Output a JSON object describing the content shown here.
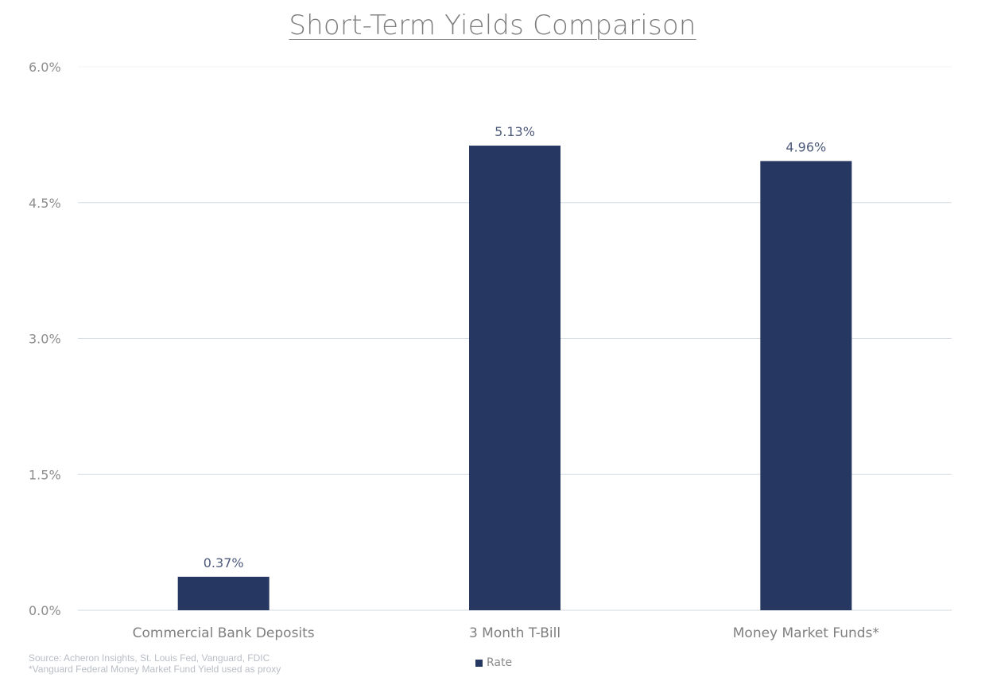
{
  "chart_data": {
    "type": "bar",
    "title": "Short-Term Yields Comparison",
    "categories": [
      "Commercial Bank Deposits",
      "3 Month T-Bill",
      "Money Market Funds*"
    ],
    "series": [
      {
        "name": "Rate",
        "values": [
          0.37,
          5.13,
          4.96
        ]
      }
    ],
    "data_labels": [
      "0.37%",
      "5.13%",
      "4.96%"
    ],
    "yticks": [
      "0.0%",
      "1.5%",
      "3.0%",
      "4.5%",
      "6.0%"
    ],
    "ytick_values": [
      0,
      1.5,
      3.0,
      4.5,
      6.0
    ],
    "ylim": [
      0,
      6.0
    ],
    "grid": true,
    "legend_position": "bottom",
    "bar_color": "#263762"
  },
  "footnote": {
    "source": "Source: Acheron Insights, St. Louis Fed, Vanguard, FDIC",
    "note": "*Vanguard Federal Money Market Fund Yield used as proxy"
  }
}
